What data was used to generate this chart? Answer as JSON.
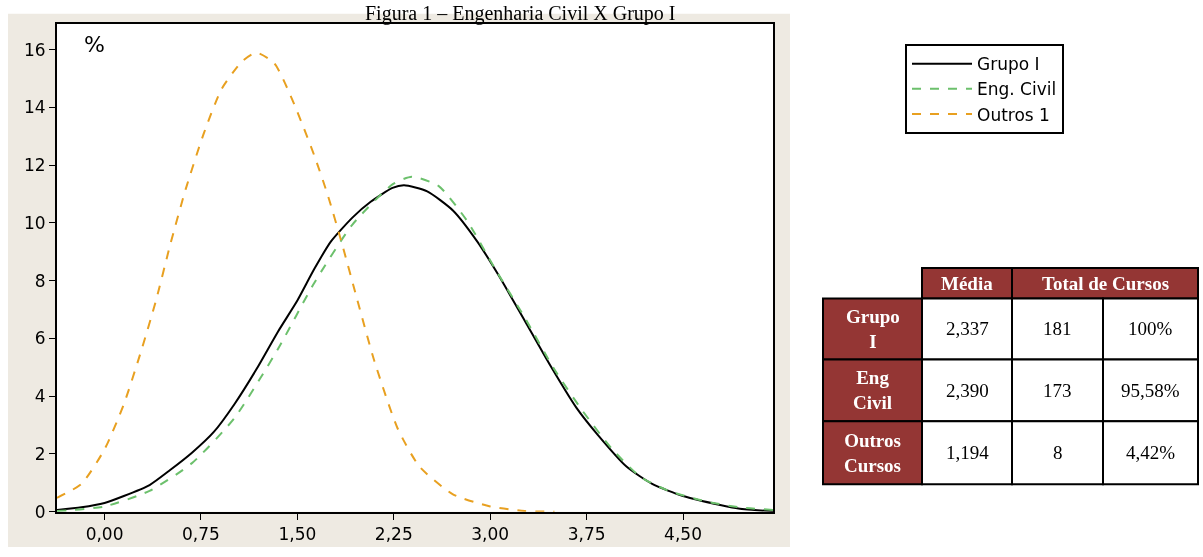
{
  "chart_data": [
    {
      "type": "line",
      "title": "Figura 1 – Engenharia Civil X Grupo I",
      "ylabel": "%",
      "xlim": [
        -0.37,
        5.2
      ],
      "ylim": [
        0,
        16.9
      ],
      "xticks": [
        {
          "value": 0,
          "label": "0,00"
        },
        {
          "value": 0.75,
          "label": "0,75"
        },
        {
          "value": 1.5,
          "label": "1,50"
        },
        {
          "value": 2.25,
          "label": "2,25"
        },
        {
          "value": 3,
          "label": "3,00"
        },
        {
          "value": 3.75,
          "label": "3,75"
        },
        {
          "value": 4.5,
          "label": "4,50"
        }
      ],
      "yticks": [
        0,
        2,
        4,
        6,
        8,
        10,
        12,
        14,
        16
      ],
      "grid": false,
      "legend": "right",
      "marker": "none",
      "series": [
        {
          "name": "Grupo I",
          "color": "#000000",
          "line_style": "solid",
          "x": [
            -0.37,
            -0.18,
            0,
            0.15,
            0.35,
            0.51,
            0.68,
            0.85,
            1.01,
            1.18,
            1.35,
            1.5,
            1.63,
            1.76,
            1.93,
            2.07,
            2.24,
            2.33,
            2.51,
            2.71,
            2.9,
            3.07,
            3.27,
            3.47,
            3.67,
            3.84,
            4.06,
            4.26,
            4.5,
            4.78,
            4.98,
            5.2
          ],
          "values": [
            0.06,
            0.15,
            0.3,
            0.54,
            0.92,
            1.44,
            2.04,
            2.76,
            3.72,
            4.92,
            6.24,
            7.31,
            8.39,
            9.35,
            10.19,
            10.73,
            11.21,
            11.3,
            11.09,
            10.43,
            9.35,
            8.15,
            6.6,
            5.04,
            3.6,
            2.64,
            1.56,
            0.96,
            0.54,
            0.24,
            0.08,
            0.02
          ]
        },
        {
          "name": "Eng. Civil",
          "color": "#6cc06c",
          "line_style": "dashed",
          "x": [
            -0.37,
            0,
            0.35,
            0.68,
            1.01,
            1.35,
            1.63,
            1.93,
            2.24,
            2.39,
            2.6,
            2.82,
            3.04,
            3.27,
            3.5,
            3.72,
            3.95,
            4.17,
            4.39,
            4.67,
            4.95,
            5.2
          ],
          "values": [
            0.02,
            0.18,
            0.72,
            1.68,
            3.24,
            5.64,
            7.91,
            9.95,
            11.33,
            11.6,
            11.27,
            10.07,
            8.39,
            6.71,
            4.92,
            3.48,
            2.16,
            1.2,
            0.72,
            0.36,
            0.14,
            0.06
          ]
        },
        {
          "name": "Outros 1",
          "color": "#e8a020",
          "line_style": "dashed",
          "x": [
            -0.37,
            -0.18,
            0,
            0.15,
            0.29,
            0.4,
            0.51,
            0.63,
            0.77,
            0.91,
            1.07,
            1.18,
            1.32,
            1.46,
            1.63,
            1.74,
            1.85,
            1.96,
            2.1,
            2.28,
            2.45,
            2.71,
            3.0,
            3.27,
            3.5
          ],
          "values": [
            0.48,
            0.96,
            2.16,
            3.72,
            5.64,
            7.31,
            9.23,
            11.15,
            13.07,
            14.63,
            15.59,
            15.89,
            15.53,
            14.27,
            12.35,
            10.91,
            9.23,
            7.43,
            5.2,
            2.88,
            1.56,
            0.6,
            0.18,
            0.02,
            0
          ]
        }
      ]
    },
    {
      "type": "other",
      "color": "#943634",
      "annotations": [
        "Média",
        "Total de Cursos",
        "Grupo I",
        "2,337",
        "181",
        "100%",
        "Eng Civil",
        "2,390",
        "173",
        "95,58%",
        "Outros Cursos",
        "1,194",
        "8",
        "4,42%"
      ]
    }
  ]
}
